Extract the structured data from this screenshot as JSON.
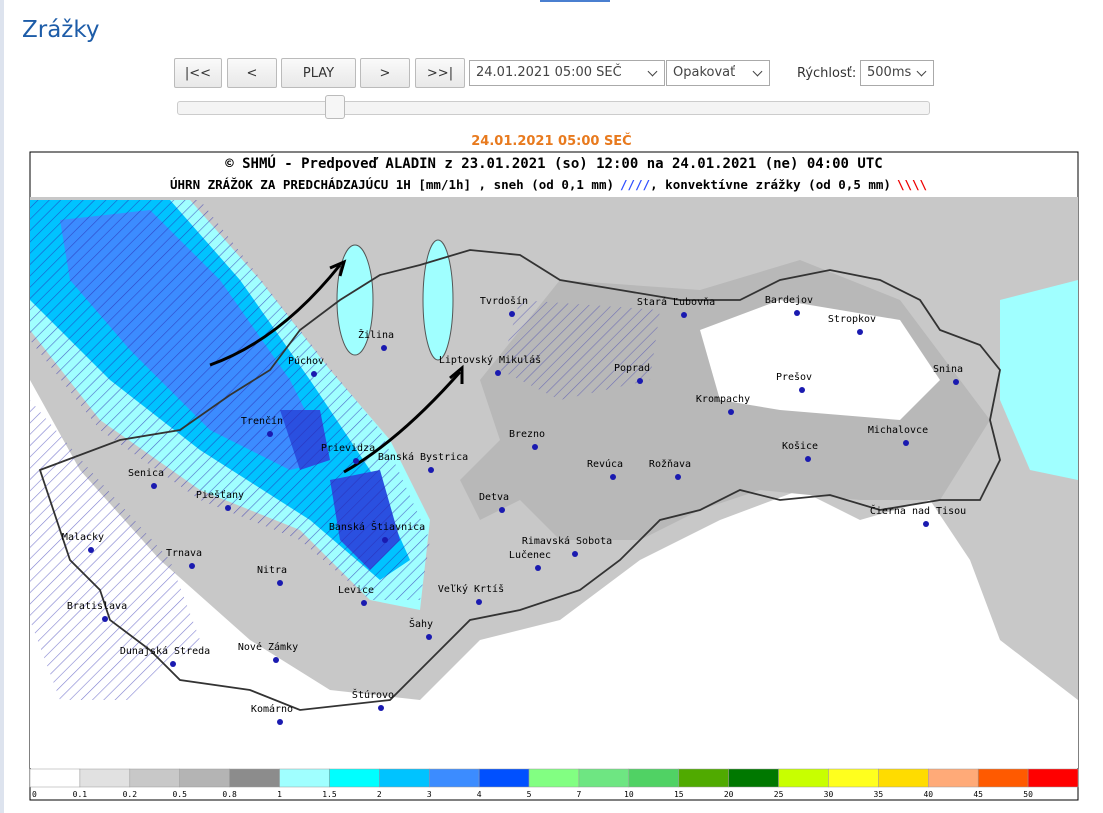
{
  "page": {
    "title": "Zrážky"
  },
  "controls": {
    "buttons": [
      "|<<",
      "<",
      "PLAY",
      ">",
      ">>|"
    ],
    "time_select": "24.01.2021 05:00 SEČ",
    "repeat_select": "Opakovať",
    "speed_label": "Rýchlosť:",
    "speed_select": "500ms"
  },
  "map": {
    "timestamp": "24.01.2021 05:00 SEČ",
    "header_line1": "© SHMÚ - Predpoveď ALADIN z 23.01.2021 (so) 12:00 na 24.01.2021 (ne) 04:00 UTC",
    "header_line2": "ÚHRN ZRÁŽOK ZA PREDCHÁDZAJÚCU 1H [mm/1h] , sneh (od 0,1 mm)",
    "header_snow_mark": "////",
    "header_line2b": ", konvektívne zrážky (od 0,5 mm)",
    "header_conv_mark": "\\\\\\\\",
    "cities": [
      "Tvrdošín",
      "Stará Ľubovňa",
      "Bardejov",
      "Stropkov",
      "Žilina",
      "Púchov",
      "Liptovský Mikuláš",
      "Poprad",
      "Prešov",
      "Snina",
      "Krompachy",
      "Trenčín",
      "Brezno",
      "Michalovce",
      "Prievidza",
      "Banská Bystrica",
      "Košice",
      "Revúca",
      "Rožňava",
      "Senica",
      "Piešťany",
      "Detva",
      "Čierna nad Tisou",
      "Banská Štiavnica",
      "Malacky",
      "Rimavská Sobota",
      "Lučenec",
      "Trnava",
      "Nitra",
      "Levice",
      "Veľký Krtíš",
      "Bratislava",
      "Šahy",
      "Dunajská Streda",
      "Nové Zámky",
      "Štúrovo",
      "Komárno"
    ],
    "legend": [
      {
        "label": 0,
        "color": "#ffffff"
      },
      {
        "label": 0.1,
        "color": "#e1e1e1"
      },
      {
        "label": 0.2,
        "color": "#c8c8c8"
      },
      {
        "label": 0.5,
        "color": "#b4b4b4"
      },
      {
        "label": 0.8,
        "color": "#8c8c8c"
      },
      {
        "label": 1,
        "color": "#a0ffff"
      },
      {
        "label": 1.5,
        "color": "#00ffff"
      },
      {
        "label": 2,
        "color": "#00c3ff"
      },
      {
        "label": 3,
        "color": "#3c8cff"
      },
      {
        "label": 4,
        "color": "#0050ff"
      },
      {
        "label": 5,
        "color": "#82ff82"
      },
      {
        "label": 7,
        "color": "#6ee682"
      },
      {
        "label": 10,
        "color": "#50d264"
      },
      {
        "label": 15,
        "color": "#50aa00"
      },
      {
        "label": 20,
        "color": "#007800"
      },
      {
        "label": 25,
        "color": "#c8ff00"
      },
      {
        "label": 30,
        "color": "#ffff1e"
      },
      {
        "label": 35,
        "color": "#ffdc00"
      },
      {
        "label": 40,
        "color": "#ffaa78"
      },
      {
        "label": 45,
        "color": "#ff5a00"
      },
      {
        "label": 50,
        "color": "#ff0000"
      }
    ]
  }
}
